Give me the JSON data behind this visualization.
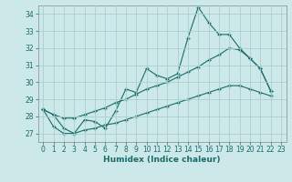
{
  "xlabel": "Humidex (Indice chaleur)",
  "bg_color": "#cce8e8",
  "grid_color": "#aacfcf",
  "line_color": "#1a6b6b",
  "xlim": [
    -0.5,
    23.5
  ],
  "ylim": [
    26.5,
    34.5
  ],
  "xticks": [
    0,
    1,
    2,
    3,
    4,
    5,
    6,
    7,
    8,
    9,
    10,
    11,
    12,
    13,
    14,
    15,
    16,
    17,
    18,
    19,
    20,
    21,
    22,
    23
  ],
  "yticks": [
    27,
    28,
    29,
    30,
    31,
    32,
    33,
    34
  ],
  "main_x": [
    0,
    1,
    2,
    3,
    4,
    5,
    6,
    7,
    8,
    9,
    10,
    11,
    12,
    13,
    14,
    15,
    16,
    17,
    18,
    19,
    20,
    21,
    22
  ],
  "main_y": [
    28.4,
    28.1,
    27.3,
    27.0,
    27.8,
    27.7,
    27.3,
    28.3,
    29.6,
    29.4,
    30.8,
    30.4,
    30.2,
    30.5,
    32.6,
    34.4,
    33.5,
    32.8,
    32.8,
    32.0,
    31.4,
    30.8,
    29.5
  ],
  "upper_x": [
    0,
    1,
    2,
    3,
    4,
    5,
    6,
    7,
    8,
    9,
    10,
    11,
    12,
    13,
    14,
    15,
    16,
    17,
    18,
    19,
    20,
    21,
    22
  ],
  "upper_y": [
    28.4,
    28.1,
    27.9,
    27.9,
    28.1,
    28.3,
    28.5,
    28.8,
    29.0,
    29.3,
    29.6,
    29.8,
    30.0,
    30.3,
    30.6,
    30.9,
    31.3,
    31.6,
    32.0,
    31.9,
    31.4,
    30.8,
    29.5
  ],
  "lower_x": [
    0,
    1,
    2,
    3,
    4,
    5,
    6,
    7,
    8,
    9,
    10,
    11,
    12,
    13,
    14,
    15,
    16,
    17,
    18,
    19,
    20,
    21,
    22
  ],
  "lower_y": [
    28.4,
    27.4,
    27.0,
    27.0,
    27.2,
    27.3,
    27.5,
    27.6,
    27.8,
    28.0,
    28.2,
    28.4,
    28.6,
    28.8,
    29.0,
    29.2,
    29.4,
    29.6,
    29.8,
    29.8,
    29.6,
    29.4,
    29.2
  ]
}
